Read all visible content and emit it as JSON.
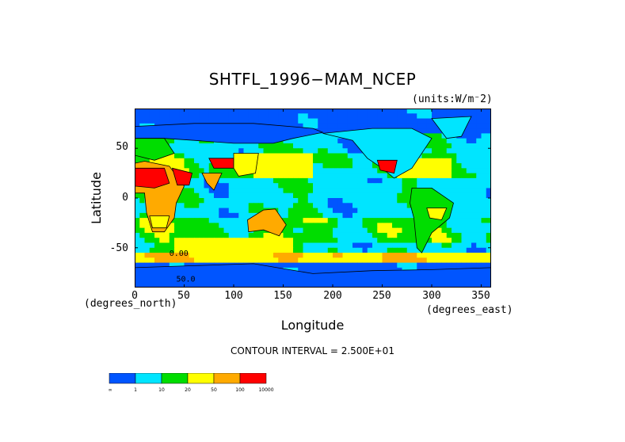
{
  "chart_data": {
    "type": "heatmap",
    "title": "SHTFL_1996−MAM_NCEP",
    "units": "(units:W/m⁻2)",
    "ylabel": "Latitude",
    "xlabel": "Longitude",
    "x_unit_label": "(degrees_east)",
    "y_unit_label": "(degrees_north)",
    "xlim": [
      0,
      360
    ],
    "ylim": [
      -90,
      90
    ],
    "x_ticks": [
      0,
      50,
      100,
      150,
      200,
      250,
      300,
      350
    ],
    "y_ticks": [
      50,
      0,
      -50
    ],
    "contour_interval": "CONTOUR INTERVAL = 2.500E+01",
    "contour_labels": [
      "0.00",
      "50.0"
    ],
    "legend": {
      "boundaries": [
        "-∞",
        "1",
        "10",
        "20",
        "50",
        "100",
        "10000"
      ],
      "colors": [
        "#0055ff",
        "#00e5ff",
        "#00dd00",
        "#ffff00",
        "#ffaa00",
        "#ff0000"
      ]
    }
  }
}
